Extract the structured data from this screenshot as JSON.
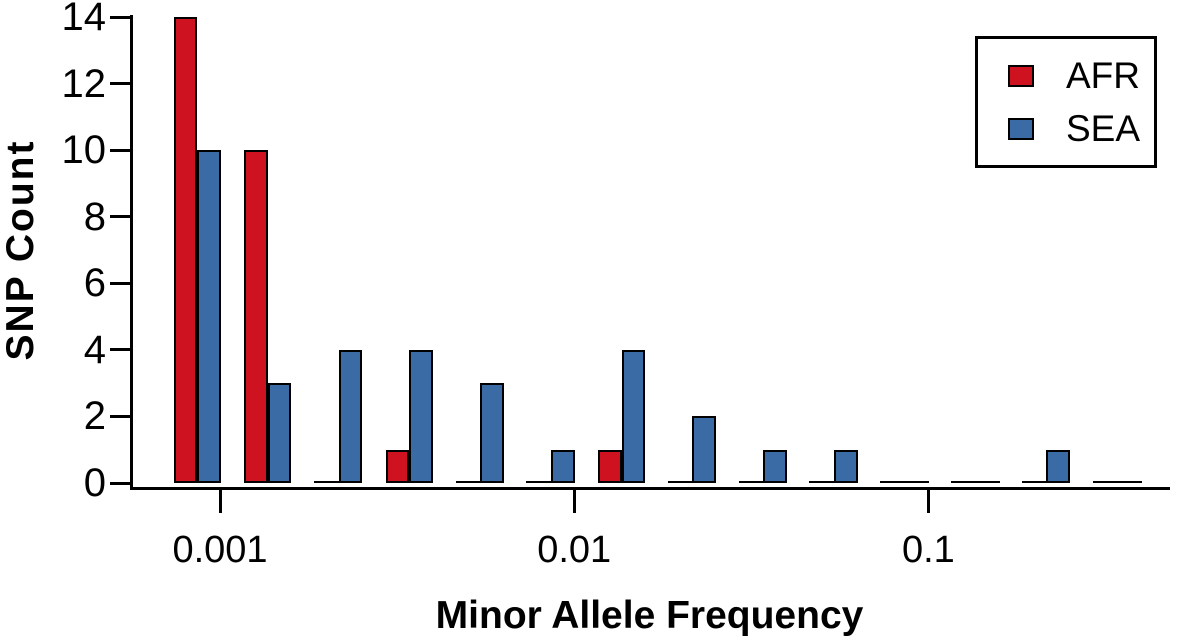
{
  "chart_data": {
    "type": "bar",
    "title": "",
    "xlabel": "Minor Allele Frequency",
    "ylabel": "SNP Count",
    "x_scale": "log10",
    "grid": false,
    "legend_position": "top-right",
    "ylim": [
      0,
      14
    ],
    "y_ticks": [
      0,
      2,
      4,
      6,
      8,
      10,
      12,
      14
    ],
    "x_ticks": [
      0.001,
      0.01,
      0.1
    ],
    "bin_centers": [
      0.0008,
      0.00126,
      0.002,
      0.0032,
      0.005,
      0.008,
      0.0126,
      0.02,
      0.032,
      0.05,
      0.08,
      0.126,
      0.2,
      0.32
    ],
    "series": [
      {
        "name": "AFR",
        "color": "#CE1220",
        "values": [
          14,
          10,
          0,
          1,
          0,
          0,
          1,
          0,
          0,
          0,
          0,
          0,
          0,
          0
        ]
      },
      {
        "name": "SEA",
        "color": "#3A6BA4",
        "values": [
          10,
          3,
          4,
          4,
          3,
          1,
          4,
          2,
          1,
          1,
          0,
          0,
          1,
          0
        ]
      }
    ]
  },
  "axes": {
    "y_title": "SNP Count",
    "x_title": "Minor Allele Frequency",
    "y_tick_labels": [
      "0",
      "2",
      "4",
      "6",
      "8",
      "10",
      "12",
      "14"
    ],
    "x_tick_labels": [
      "0.001",
      "0.01",
      "0.1"
    ]
  },
  "legend": {
    "afr_label": "AFR",
    "sea_label": "SEA"
  },
  "colors": {
    "afr": "#CE1220",
    "sea": "#3A6BA4",
    "axis": "#000000",
    "background": "#FFFFFF"
  }
}
